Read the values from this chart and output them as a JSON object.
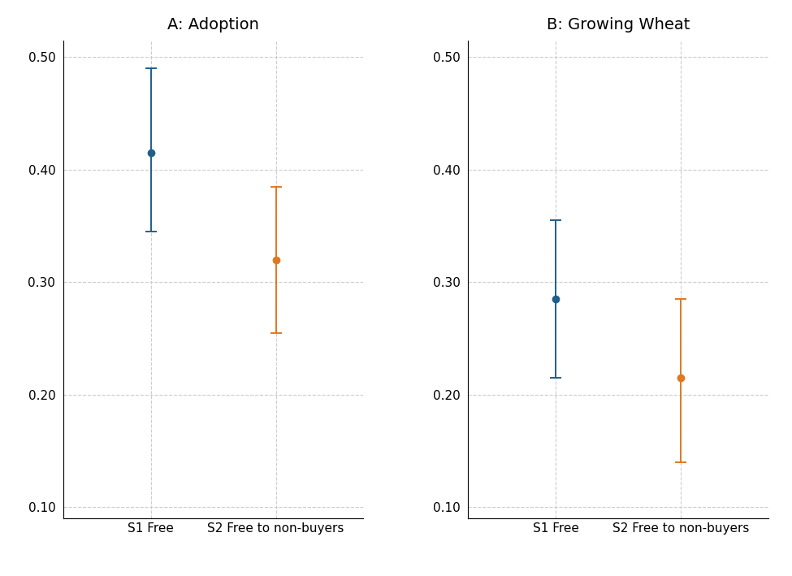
{
  "panels": [
    {
      "title": "A: Adoption",
      "categories": [
        "S1 Free",
        "S2 Free to non-buyers"
      ],
      "centers": [
        0.415,
        0.32
      ],
      "ci_low": [
        0.345,
        0.255
      ],
      "ci_high": [
        0.49,
        0.385
      ],
      "colors": [
        "#1f5f8b",
        "#e07820"
      ],
      "ylim": [
        0.09,
        0.515
      ],
      "yticks": [
        0.1,
        0.2,
        0.3,
        0.4,
        0.5
      ]
    },
    {
      "title": "B: Growing Wheat",
      "categories": [
        "S1 Free",
        "S2 Free to non-buyers"
      ],
      "centers": [
        0.285,
        0.215
      ],
      "ci_low": [
        0.215,
        0.14
      ],
      "ci_high": [
        0.355,
        0.285
      ],
      "colors": [
        "#1f5f8b",
        "#e07820"
      ],
      "ylim": [
        0.09,
        0.515
      ],
      "yticks": [
        0.1,
        0.2,
        0.3,
        0.4,
        0.5
      ]
    }
  ],
  "background_color": "#ffffff",
  "grid_color": "#cccccc",
  "grid_linestyle": "--",
  "marker_size": 6,
  "capsize": 5,
  "linewidth": 1.4,
  "title_fontsize": 14,
  "tick_fontsize": 11,
  "label_fontsize": 11,
  "x_positions": [
    1,
    2
  ],
  "xlim": [
    0.3,
    2.7
  ]
}
